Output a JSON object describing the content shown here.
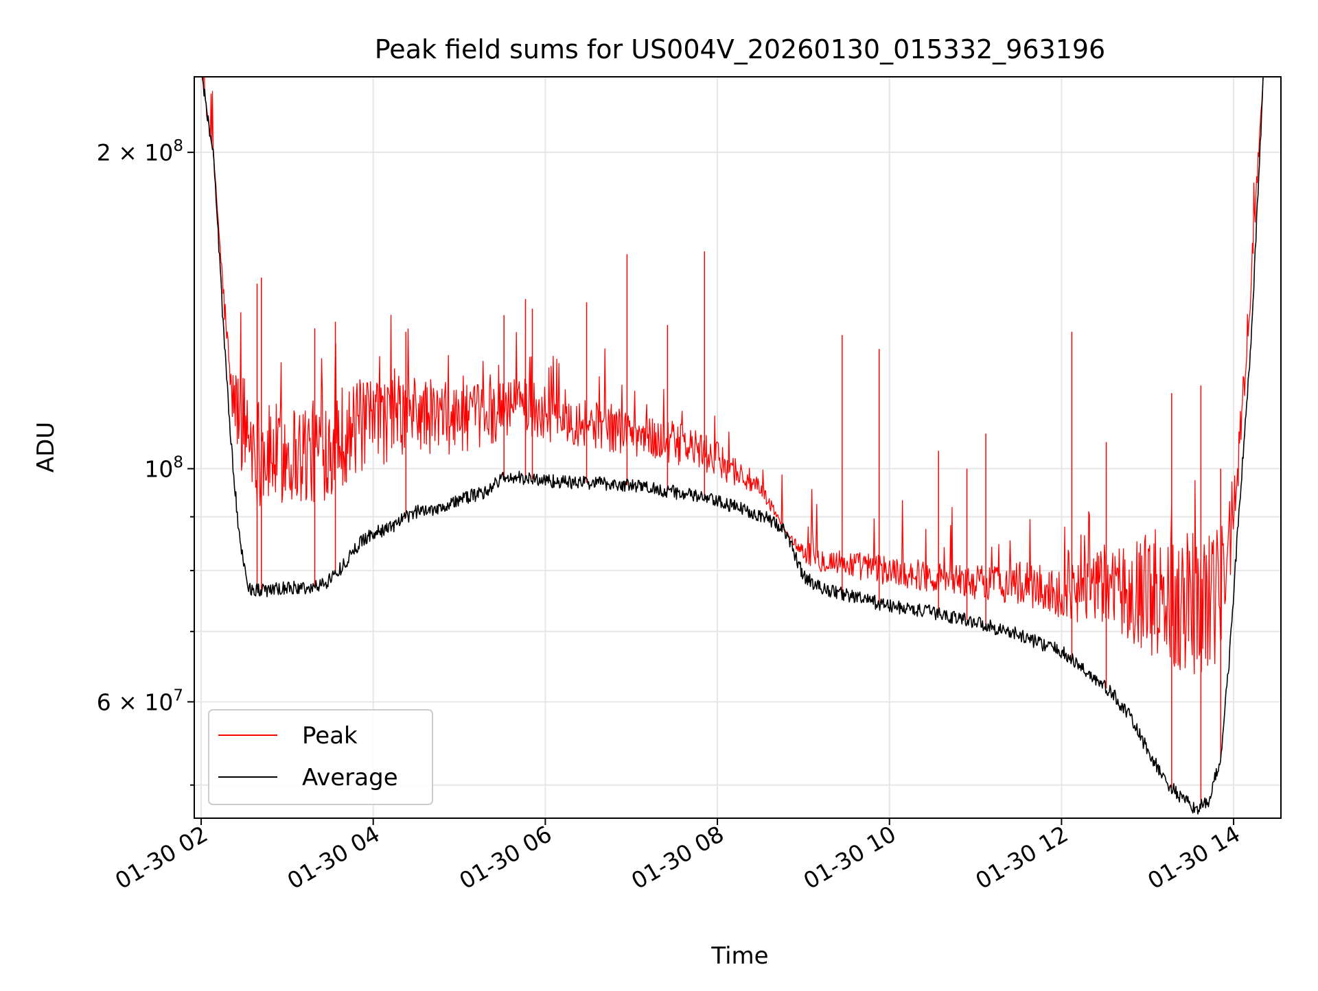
{
  "chart_data": {
    "type": "line",
    "title": "Peak field sums for US004V_20260130_015332_963196",
    "xlabel": "Time",
    "ylabel": "ADU",
    "x_tick_labels": [
      "01-30 02",
      "01-30 04",
      "01-30 06",
      "01-30 08",
      "01-30 10",
      "01-30 12",
      "01-30 14"
    ],
    "x_tick_hours": [
      2,
      4,
      6,
      8,
      10,
      12,
      14
    ],
    "xlim_hours": [
      1.92,
      14.55
    ],
    "yscale": "log",
    "ylim": [
      46500000,
      236000000
    ],
    "y_major_ticks": [
      {
        "value": 200000000,
        "mantissa": "2",
        "exponent": "8"
      },
      {
        "value": 100000000,
        "mantissa": "",
        "exponent": "8"
      },
      {
        "value": 60000000,
        "mantissa": "6",
        "exponent": "7"
      }
    ],
    "y_minor_ticks": [
      50000000,
      70000000,
      80000000,
      90000000
    ],
    "grid": true,
    "legend_position": "lower-left",
    "series": [
      {
        "name": "Peak",
        "color": "#ff0000",
        "x_hours": [
          2.0,
          2.15,
          2.25,
          2.35,
          2.55,
          2.75,
          3.0,
          3.3,
          3.6,
          3.9,
          4.2,
          4.5,
          4.8,
          5.1,
          5.4,
          5.7,
          6.0,
          6.3,
          6.6,
          6.9,
          7.2,
          7.5,
          7.8,
          8.1,
          8.4,
          8.6,
          8.8,
          8.95,
          9.2,
          9.6,
          10.0,
          10.5,
          11.0,
          11.5,
          12.0,
          12.3,
          12.6,
          12.9,
          13.1,
          13.3,
          13.55,
          13.75,
          13.9,
          14.05,
          14.2,
          14.35
        ],
        "values": [
          240000000,
          196000000,
          150000000,
          118000000,
          108000000,
          103000000,
          104000000,
          104000000,
          108000000,
          110000000,
          112000000,
          113000000,
          112000000,
          112000000,
          113000000,
          116000000,
          113000000,
          112000000,
          110000000,
          109000000,
          107000000,
          106000000,
          104000000,
          101000000,
          97000000,
          93000000,
          87000000,
          84000000,
          82000000,
          81000000,
          80000000,
          79000000,
          78000000,
          78000000,
          76000000,
          77000000,
          77000000,
          77000000,
          77000000,
          76000000,
          76000000,
          76000000,
          80000000,
          100000000,
          150000000,
          240000000
        ],
        "spikes": [
          {
            "x_hours": 2.65,
            "value": 150000000
          },
          {
            "x_hours": 2.7,
            "value": 152000000
          },
          {
            "x_hours": 3.32,
            "value": 136000000
          },
          {
            "x_hours": 3.56,
            "value": 138000000
          },
          {
            "x_hours": 4.38,
            "value": 135000000
          },
          {
            "x_hours": 5.52,
            "value": 140000000
          },
          {
            "x_hours": 5.77,
            "value": 145000000
          },
          {
            "x_hours": 5.85,
            "value": 142000000
          },
          {
            "x_hours": 6.48,
            "value": 144000000
          },
          {
            "x_hours": 6.95,
            "value": 160000000
          },
          {
            "x_hours": 7.42,
            "value": 137000000
          },
          {
            "x_hours": 7.85,
            "value": 161000000
          },
          {
            "x_hours": 9.45,
            "value": 134000000
          },
          {
            "x_hours": 9.88,
            "value": 130000000
          },
          {
            "x_hours": 10.57,
            "value": 104000000
          },
          {
            "x_hours": 10.9,
            "value": 100000000
          },
          {
            "x_hours": 11.12,
            "value": 108000000
          },
          {
            "x_hours": 12.12,
            "value": 135000000
          },
          {
            "x_hours": 12.52,
            "value": 106000000
          },
          {
            "x_hours": 13.28,
            "value": 118000000
          },
          {
            "x_hours": 13.62,
            "value": 120000000
          },
          {
            "x_hours": 13.85,
            "value": 100000000
          }
        ]
      },
      {
        "name": "Average",
        "color": "#000000",
        "x_hours": [
          2.0,
          2.15,
          2.25,
          2.35,
          2.45,
          2.55,
          2.75,
          3.0,
          3.3,
          3.45,
          3.6,
          3.8,
          3.9,
          4.2,
          4.5,
          4.8,
          5.1,
          5.3,
          5.5,
          5.7,
          6.0,
          6.3,
          6.6,
          6.9,
          7.2,
          7.5,
          7.8,
          8.1,
          8.4,
          8.6,
          8.75,
          8.9,
          9.0,
          9.2,
          9.6,
          10.0,
          10.5,
          11.0,
          11.5,
          12.0,
          12.3,
          12.6,
          12.8,
          13.0,
          13.2,
          13.4,
          13.55,
          13.7,
          13.85,
          13.95,
          14.05,
          14.2,
          14.35
        ],
        "values": [
          240000000,
          196000000,
          140000000,
          105000000,
          85000000,
          77000000,
          76500000,
          77000000,
          77000000,
          78000000,
          80000000,
          84000000,
          86000000,
          88000000,
          91000000,
          92000000,
          94000000,
          95000000,
          98000000,
          98000000,
          97500000,
          97000000,
          97000000,
          96500000,
          96000000,
          95000000,
          94000000,
          92500000,
          91000000,
          89500000,
          88000000,
          83000000,
          79000000,
          77000000,
          75500000,
          74000000,
          73000000,
          71500000,
          69500000,
          67000000,
          64000000,
          61000000,
          58000000,
          54000000,
          50500000,
          48500000,
          47500000,
          48000000,
          53000000,
          66000000,
          88000000,
          130000000,
          240000000
        ]
      }
    ]
  }
}
